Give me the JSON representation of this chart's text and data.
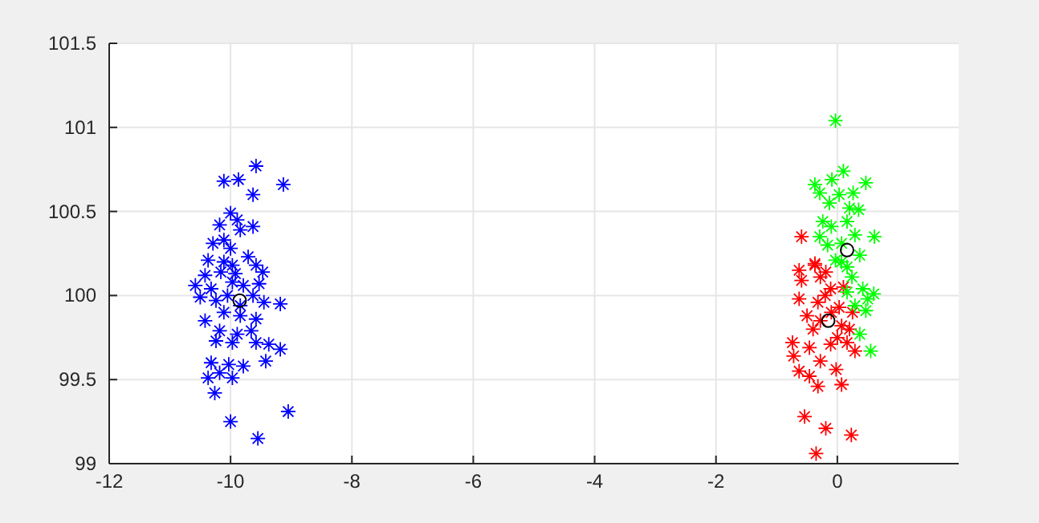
{
  "chart_data": {
    "type": "scatter",
    "xlim": [
      -12,
      2
    ],
    "ylim": [
      99,
      101.5
    ],
    "xticks": [
      -12,
      -10,
      -8,
      -6,
      -4,
      -2,
      0
    ],
    "yticks": [
      99,
      99.5,
      100,
      100.5,
      101,
      101.5
    ],
    "grid": true,
    "marker": "cross",
    "series": [
      {
        "color": "#0000ff",
        "x": [
          -9.58,
          -10.11,
          -9.87,
          -9.13,
          -9.63,
          -10.0,
          -9.89,
          -10.18,
          -9.84,
          -9.63,
          -10.29,
          -10.11,
          -10.0,
          -10.37,
          -10.11,
          -9.71,
          -9.58,
          -9.47,
          -10.16,
          -10.42,
          -9.92,
          -10.58,
          -10.32,
          -9.97,
          -9.79,
          -9.53,
          -10.5,
          -10.24,
          -10.05,
          -9.63,
          -9.45,
          -9.18,
          -10.42,
          -10.11,
          -9.84,
          -9.58,
          -10.18,
          -9.89,
          -9.66,
          -10.24,
          -9.97,
          -9.58,
          -9.37,
          -9.18,
          -10.32,
          -10.03,
          -9.79,
          -9.42,
          -10.18,
          -9.97,
          -10.37,
          -10.26,
          -10.0,
          -9.05,
          -9.55,
          -9.84,
          -9.97
        ],
        "values": [
          100.77,
          100.68,
          100.69,
          100.66,
          100.6,
          100.49,
          100.45,
          100.42,
          100.39,
          100.41,
          100.31,
          100.33,
          100.28,
          100.21,
          100.2,
          100.23,
          100.18,
          100.14,
          100.14,
          100.12,
          100.13,
          100.06,
          100.04,
          100.08,
          100.06,
          100.07,
          99.99,
          99.97,
          100.0,
          100.0,
          99.96,
          99.95,
          99.85,
          99.9,
          99.88,
          99.86,
          99.79,
          99.77,
          99.79,
          99.73,
          99.72,
          99.72,
          99.71,
          99.68,
          99.6,
          99.59,
          99.58,
          99.61,
          99.54,
          99.51,
          99.51,
          99.42,
          99.25,
          99.31,
          99.15,
          99.94,
          100.18
        ]
      },
      {
        "color": "#ff0000",
        "x": [
          -0.37,
          -0.59,
          -0.28,
          -0.11,
          -0.63,
          -0.32,
          0.03,
          -0.5,
          -0.28,
          0.07,
          -0.74,
          -0.46,
          -0.11,
          0.16,
          0.29,
          -0.72,
          -0.28,
          -0.02,
          -0.63,
          -0.46,
          -0.32,
          0.07,
          -0.54,
          -0.19,
          0.23,
          -0.35,
          -0.59,
          -0.37,
          -0.63,
          -0.19,
          -0.1,
          0.2,
          -0.2,
          0.0,
          -0.4,
          0.25,
          0.1
        ],
        "values": [
          100.19,
          100.09,
          100.11,
          100.04,
          99.98,
          99.96,
          99.93,
          99.88,
          99.85,
          99.82,
          99.72,
          99.69,
          99.71,
          99.72,
          99.67,
          99.64,
          99.61,
          99.56,
          99.55,
          99.52,
          99.46,
          99.47,
          99.28,
          99.21,
          99.17,
          99.06,
          100.35,
          100.18,
          100.15,
          100.14,
          99.9,
          99.8,
          100.0,
          99.75,
          99.8,
          99.9,
          100.05
        ]
      },
      {
        "color": "#00ff00",
        "x": [
          -0.03,
          0.1,
          -0.37,
          -0.09,
          0.47,
          0.26,
          0.03,
          -0.29,
          -0.13,
          0.2,
          0.35,
          -0.24,
          0.16,
          -0.1,
          0.61,
          0.29,
          -0.29,
          0.07,
          -0.16,
          0.37,
          -0.03,
          0.16,
          0.07,
          0.24,
          0.42,
          0.5,
          0.29,
          0.55,
          0.37,
          0.16,
          0.47,
          0.6
        ],
        "values": [
          101.04,
          100.74,
          100.66,
          100.69,
          100.67,
          100.61,
          100.6,
          100.61,
          100.55,
          100.52,
          100.51,
          100.44,
          100.44,
          100.41,
          100.35,
          100.36,
          100.35,
          100.31,
          100.3,
          100.24,
          100.21,
          100.17,
          100.2,
          100.11,
          100.04,
          99.98,
          99.94,
          99.67,
          99.77,
          100.02,
          99.91,
          100.01
        ]
      },
      {
        "color": "#000000",
        "marker": "circle",
        "x": [
          -9.85,
          -0.15,
          0.16
        ],
        "values": [
          99.97,
          99.85,
          100.27
        ]
      }
    ]
  }
}
